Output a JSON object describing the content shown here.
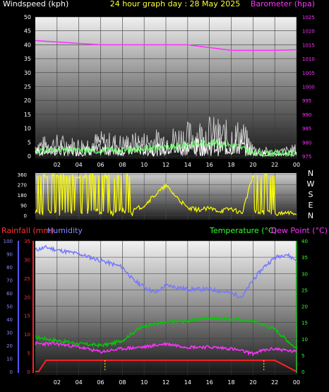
{
  "header": {
    "left_label": "Windspeed (kph)",
    "title": "24 hour graph day : 28 May 2025",
    "right_label": "Barometer (hpa)"
  },
  "lower_header": {
    "rainfall_label": "Rainfall (mm)",
    "humidity_label": "Humidity",
    "temperature_label": "Temperature (°C)",
    "dewpoint_label": "Dew Point (°C)"
  },
  "colors": {
    "wind_speed": "#ffffff",
    "wind_gust": "#c8c8c8",
    "wind_avg": "#66ff66",
    "barometer": "#ff33ff",
    "wind_direction": "#ffff00",
    "rainfall": "#ff2222",
    "humidity": "#7777ff",
    "temperature": "#00cc00",
    "dewpoint": "#ff33ff",
    "rain_tick": "#ffff00"
  },
  "chart_data": [
    {
      "type": "line",
      "title": "24 hour graph day : 28 May 2025",
      "x_ticks": [
        "02",
        "04",
        "06",
        "08",
        "10",
        "12",
        "14",
        "16",
        "18",
        "20",
        "22",
        "00"
      ],
      "left_axis": {
        "label": "Windspeed (kph)",
        "ticks": [
          0,
          5,
          10,
          15,
          20,
          25,
          30,
          35,
          40,
          45,
          50
        ],
        "ylim": [
          0,
          50
        ]
      },
      "right_axis": {
        "label": "Barometer (hpa)",
        "ticks": [
          975,
          980,
          985,
          990,
          995,
          1000,
          1005,
          1010,
          1015,
          1020,
          1025
        ],
        "ylim": [
          975,
          1025
        ]
      },
      "grid": true,
      "series": [
        {
          "axis": "right",
          "hours": [
            0,
            2,
            4,
            6,
            8,
            10,
            12,
            14,
            16,
            18,
            20,
            22,
            24
          ],
          "values": [
            1016.5,
            1016,
            1015.5,
            1015,
            1015,
            1015,
            1015,
            1015,
            1014,
            1013,
            1013,
            1013,
            1013.2
          ]
        },
        {
          "axis": "left",
          "hours": [
            0,
            2,
            4,
            6,
            8,
            10,
            12,
            14,
            16,
            18,
            19,
            20,
            22,
            24
          ],
          "values": [
            6,
            7,
            6,
            8,
            7,
            8,
            9,
            11,
            13,
            11,
            12,
            4,
            2,
            4
          ]
        },
        {
          "axis": "left",
          "hours": [
            0,
            2,
            4,
            6,
            8,
            10,
            12,
            14,
            16,
            18,
            19,
            20,
            22,
            24
          ],
          "values": [
            2,
            2,
            2,
            2,
            2,
            3,
            3,
            4,
            5,
            4,
            3,
            1,
            1,
            1
          ]
        }
      ]
    },
    {
      "type": "line",
      "y_ticks": [
        0,
        90,
        180,
        270,
        360
      ],
      "ylim": [
        0,
        360
      ],
      "compass_labels": [
        "N",
        "W",
        "S",
        "E",
        "N"
      ],
      "series": [
        {
          "hours": [
            0,
            1,
            2,
            3,
            4,
            5,
            6,
            7,
            8,
            9,
            10,
            11,
            12,
            13,
            14,
            15,
            16,
            17,
            18,
            19,
            20,
            21,
            22,
            23,
            24
          ],
          "values": [
            20,
            300,
            10,
            330,
            40,
            340,
            20,
            330,
            40,
            40,
            90,
            180,
            260,
            160,
            60,
            50,
            60,
            40,
            60,
            20,
            350,
            340,
            10,
            20,
            20
          ]
        }
      ]
    },
    {
      "type": "line",
      "x_ticks": [
        "02",
        "04",
        "06",
        "08",
        "10",
        "12",
        "14",
        "16",
        "18",
        "20",
        "22",
        "00"
      ],
      "humidity_axis": {
        "label": "Humidity",
        "ticks": [
          0,
          10,
          20,
          30,
          40,
          50,
          60,
          70,
          80,
          90,
          100
        ],
        "ylim": [
          0,
          100
        ]
      },
      "rainfall_axis": {
        "label": "Rainfall (mm)",
        "ticks": [
          0,
          5,
          10,
          15,
          20,
          25,
          30,
          35
        ],
        "ylim": [
          0,
          35
        ]
      },
      "temperature_axis": {
        "label": "Temperature (°C)",
        "ticks": [
          0,
          5,
          10,
          15,
          20,
          25,
          30,
          35,
          40
        ],
        "ylim": [
          0,
          40
        ]
      },
      "series": [
        {
          "axis": "humidity",
          "hours": [
            0,
            1,
            2,
            4,
            6,
            8,
            9,
            10,
            11,
            12,
            14,
            16,
            18,
            19,
            20,
            21,
            22,
            23,
            24
          ],
          "values": [
            93,
            95,
            93,
            90,
            85,
            80,
            70,
            65,
            60,
            66,
            63,
            63,
            60,
            57,
            70,
            80,
            87,
            90,
            85
          ]
        },
        {
          "axis": "temperature",
          "hours": [
            0,
            2,
            4,
            6,
            7,
            8,
            9,
            10,
            12,
            14,
            16,
            18,
            20,
            22,
            23,
            24
          ],
          "values": [
            10.5,
            9.5,
            8.5,
            8,
            8.5,
            9.5,
            12,
            14,
            15,
            15.5,
            16.5,
            16,
            15.5,
            13,
            10,
            7
          ]
        },
        {
          "axis": "temperature",
          "hours": [
            0,
            2,
            4,
            6,
            8,
            10,
            11,
            12,
            14,
            16,
            18,
            20,
            21,
            22,
            24
          ],
          "values": [
            8.5,
            8.5,
            7.5,
            6,
            7,
            7.5,
            8,
            8.5,
            7.5,
            7.5,
            7,
            5.5,
            6.5,
            7,
            6
          ]
        },
        {
          "axis": "rainfall",
          "hours": [
            0,
            0.3,
            1,
            6,
            12,
            18,
            20,
            22,
            24
          ],
          "values": [
            0,
            0,
            3,
            3,
            3,
            3,
            3,
            3,
            0
          ]
        }
      ],
      "markers_hours": [
        6.4,
        21
      ]
    }
  ]
}
